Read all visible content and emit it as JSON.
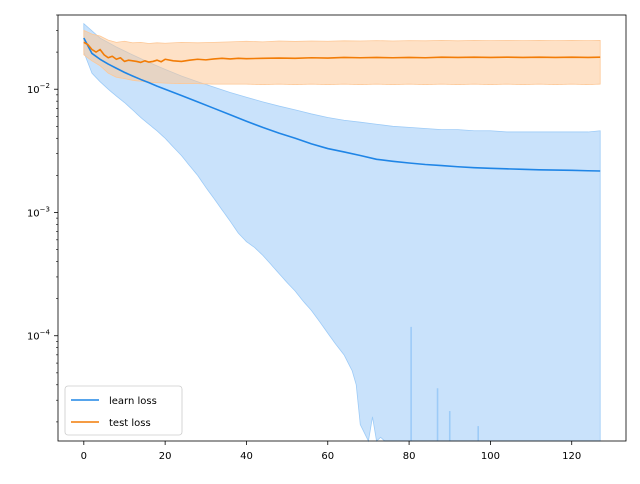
{
  "chart_data": {
    "type": "line",
    "title": "",
    "xlabel": "",
    "ylabel": "",
    "xscale": "linear",
    "yscale": "log",
    "xlim": [
      -6.35,
      133.35
    ],
    "ylim": [
      1.4e-05,
      0.04
    ],
    "x_ticks": [
      0,
      20,
      40,
      60,
      80,
      100,
      120
    ],
    "x_tick_labels": [
      "0",
      "20",
      "40",
      "60",
      "80",
      "100",
      "120"
    ],
    "y_ticks": [
      0.0001,
      0.001,
      0.01
    ],
    "y_tick_labels": [
      "10^-4",
      "10^-3",
      "10^-2"
    ],
    "y_tick_labels_display": [
      {
        "base": "10",
        "exp": "−4"
      },
      {
        "base": "10",
        "exp": "−3"
      },
      {
        "base": "10",
        "exp": "−2"
      }
    ],
    "grid": false,
    "legend": {
      "position": "lower-left",
      "entries": [
        "learn loss",
        "test loss"
      ]
    },
    "series": [
      {
        "name": "learn loss",
        "color": "#1f85e6",
        "band_color": "#9dcbf7",
        "band_opacity": 0.55,
        "mean": {
          "x": [
            0,
            2,
            4,
            6,
            8,
            10,
            12,
            14,
            16,
            18,
            20,
            24,
            28,
            32,
            36,
            40,
            44,
            48,
            52,
            56,
            60,
            64,
            68,
            72,
            76,
            80,
            84,
            88,
            92,
            96,
            100,
            104,
            108,
            112,
            116,
            120,
            124,
            127
          ],
          "y": [
            0.026,
            0.0195,
            0.0175,
            0.016,
            0.0148,
            0.0137,
            0.0128,
            0.012,
            0.0113,
            0.0106,
            0.01,
            0.0089,
            0.0079,
            0.007,
            0.0062,
            0.0055,
            0.0049,
            0.0044,
            0.004,
            0.0036,
            0.0033,
            0.0031,
            0.0029,
            0.0027,
            0.0026,
            0.00252,
            0.00245,
            0.0024,
            0.00235,
            0.00231,
            0.00228,
            0.00226,
            0.00224,
            0.00222,
            0.00221,
            0.0022,
            0.00218,
            0.00217
          ]
        },
        "upper": {
          "x": [
            0,
            4,
            8,
            12,
            16,
            20,
            24,
            28,
            32,
            36,
            40,
            44,
            48,
            52,
            56,
            60,
            64,
            68,
            72,
            76,
            80,
            84,
            88,
            92,
            96,
            100,
            104,
            108,
            112,
            116,
            120,
            124,
            127
          ],
          "y": [
            0.034,
            0.026,
            0.022,
            0.019,
            0.0165,
            0.0145,
            0.0128,
            0.0115,
            0.0104,
            0.0094,
            0.0086,
            0.0079,
            0.0073,
            0.0068,
            0.0063,
            0.0059,
            0.0056,
            0.0054,
            0.0052,
            0.005,
            0.0049,
            0.0048,
            0.0047,
            0.0047,
            0.0046,
            0.0046,
            0.0045,
            0.0045,
            0.0045,
            0.0045,
            0.0045,
            0.0045,
            0.0046
          ]
        },
        "lower": {
          "x": [
            0,
            2,
            4,
            6,
            8,
            10,
            12,
            14,
            16,
            18,
            20,
            22,
            24,
            26,
            28,
            30,
            32,
            34,
            36,
            38,
            40,
            42,
            44,
            46,
            48,
            50,
            52,
            54,
            56,
            58,
            60,
            62,
            64,
            66,
            67,
            68,
            70,
            71,
            72,
            73,
            74,
            75,
            76,
            77,
            78
          ],
          "y": [
            0.02,
            0.0135,
            0.0115,
            0.01,
            0.0088,
            0.0078,
            0.0068,
            0.0059,
            0.0052,
            0.0046,
            0.004,
            0.0034,
            0.0029,
            0.0024,
            0.002,
            0.0016,
            0.0013,
            0.00105,
            0.00085,
            0.00068,
            0.00058,
            0.00052,
            0.00045,
            0.00038,
            0.00032,
            0.00027,
            0.00023,
            0.00019,
            0.00016,
            0.00013,
            0.000105,
            8.5e-05,
            7e-05,
            5.2e-05,
            4e-05,
            1.9e-05,
            1.4e-05,
            2.2e-05,
            1.4e-05,
            1.5e-05,
            1.4e-05,
            1.4e-05,
            1.4e-05,
            1.4e-05,
            1.4e-05
          ]
        },
        "spikes": [
          {
            "x": 80.5,
            "y": 0.000118
          },
          {
            "x": 87,
            "y": 3.75e-05
          },
          {
            "x": 90,
            "y": 2.45e-05
          },
          {
            "x": 97,
            "y": 1.85e-05
          }
        ]
      },
      {
        "name": "test loss",
        "color": "#f27c06",
        "band_color": "#fdc897",
        "band_opacity": 0.55,
        "mean": {
          "x": [
            0,
            1,
            2,
            3,
            4,
            5,
            6,
            7,
            8,
            9,
            10,
            11,
            12,
            13,
            14,
            15,
            16,
            17,
            18,
            19,
            20,
            22,
            24,
            26,
            28,
            30,
            32,
            34,
            36,
            38,
            40,
            44,
            48,
            52,
            56,
            60,
            64,
            68,
            72,
            76,
            80,
            84,
            88,
            92,
            96,
            100,
            104,
            108,
            112,
            116,
            120,
            124,
            127
          ],
          "y": [
            0.024,
            0.023,
            0.021,
            0.02,
            0.021,
            0.019,
            0.018,
            0.0185,
            0.0175,
            0.018,
            0.0168,
            0.0172,
            0.017,
            0.0168,
            0.0165,
            0.017,
            0.0166,
            0.0168,
            0.0172,
            0.0167,
            0.0175,
            0.017,
            0.0168,
            0.0172,
            0.0175,
            0.0173,
            0.0176,
            0.0178,
            0.0176,
            0.0178,
            0.0177,
            0.0178,
            0.0179,
            0.0178,
            0.018,
            0.0179,
            0.0181,
            0.018,
            0.0181,
            0.018,
            0.0181,
            0.018,
            0.0182,
            0.0181,
            0.0182,
            0.0181,
            0.0182,
            0.0181,
            0.0182,
            0.0181,
            0.0182,
            0.0181,
            0.0182
          ]
        },
        "upper": {
          "x": [
            0,
            2,
            4,
            6,
            8,
            10,
            12,
            14,
            16,
            18,
            20,
            24,
            28,
            32,
            36,
            40,
            44,
            48,
            52,
            56,
            60,
            64,
            68,
            72,
            76,
            80,
            84,
            88,
            92,
            96,
            100,
            104,
            108,
            112,
            116,
            120,
            124,
            127
          ],
          "y": [
            0.03,
            0.028,
            0.027,
            0.025,
            0.024,
            0.0245,
            0.0238,
            0.024,
            0.0235,
            0.0238,
            0.0236,
            0.024,
            0.0238,
            0.024,
            0.0242,
            0.0245,
            0.0242,
            0.0246,
            0.0244,
            0.0246,
            0.0245,
            0.0247,
            0.0246,
            0.0248,
            0.0246,
            0.0248,
            0.0247,
            0.0249,
            0.0247,
            0.0249,
            0.0248,
            0.0249,
            0.0248,
            0.0249,
            0.0248,
            0.0249,
            0.0248,
            0.0249
          ]
        },
        "lower": {
          "x": [
            0,
            2,
            4,
            6,
            8,
            10,
            12,
            14,
            16,
            18,
            20,
            24,
            28,
            32,
            36,
            40,
            44,
            48,
            52,
            56,
            60,
            64,
            68,
            72,
            76,
            80,
            84,
            88,
            92,
            96,
            100,
            104,
            108,
            112,
            116,
            120,
            124,
            127
          ],
          "y": [
            0.019,
            0.017,
            0.0155,
            0.0135,
            0.0125,
            0.0122,
            0.0118,
            0.0116,
            0.0114,
            0.0113,
            0.0112,
            0.0111,
            0.0111,
            0.011,
            0.011,
            0.011,
            0.0109,
            0.011,
            0.0109,
            0.011,
            0.0109,
            0.011,
            0.0109,
            0.011,
            0.0109,
            0.011,
            0.0109,
            0.011,
            0.0109,
            0.011,
            0.0109,
            0.011,
            0.0109,
            0.011,
            0.0109,
            0.011,
            0.0109,
            0.011
          ]
        }
      }
    ]
  }
}
